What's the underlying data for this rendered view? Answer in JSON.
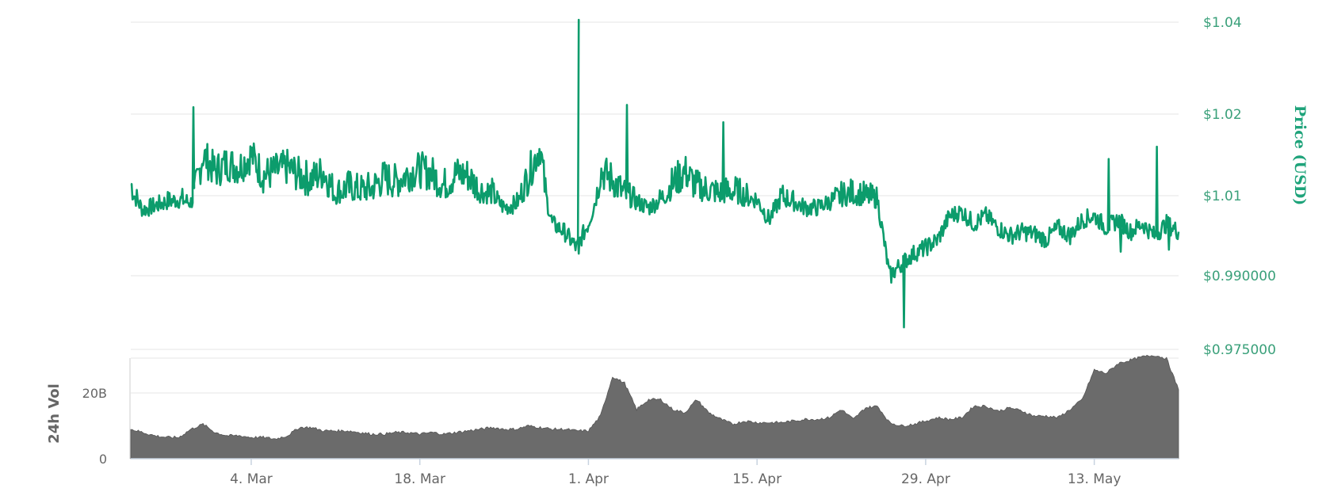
{
  "chart_data": [
    {
      "type": "line",
      "panel": "price",
      "ylabel": "Price (USD)",
      "ylim": [
        0.975,
        1.04
      ],
      "y_ticks": [
        {
          "value": 1.04,
          "label": "$1.04"
        },
        {
          "value": 1.02,
          "label": "$1.02"
        },
        {
          "value": 1.01,
          "label": "$1.01"
        },
        {
          "value": 0.99,
          "label": "$0.990000"
        },
        {
          "value": 0.975,
          "label": "$0.975000"
        }
      ],
      "x_ticks": [
        {
          "x": "2019-03-04",
          "label": "4. Mar"
        },
        {
          "x": "2019-03-18",
          "label": "18. Mar"
        },
        {
          "x": "2019-04-01",
          "label": "1. Apr"
        },
        {
          "x": "2019-04-15",
          "label": "15. Apr"
        },
        {
          "x": "2019-04-29",
          "label": "29. Apr"
        },
        {
          "x": "2019-05-13",
          "label": "13. May"
        }
      ],
      "xlim": [
        "2019-02-22",
        "2019-05-20"
      ],
      "color": "#0c9c6c",
      "series": [
        {
          "x": [
            "2019-02-22",
            "2019-02-23",
            "2019-02-24",
            "2019-02-25",
            "2019-02-26",
            "2019-02-27",
            "2019-02-28",
            "2019-03-01",
            "2019-03-02",
            "2019-03-03",
            "2019-03-04",
            "2019-03-05",
            "2019-03-06",
            "2019-03-07",
            "2019-03-08",
            "2019-03-09",
            "2019-03-10",
            "2019-03-11",
            "2019-03-12",
            "2019-03-13",
            "2019-03-14",
            "2019-03-15",
            "2019-03-16",
            "2019-03-17",
            "2019-03-18",
            "2019-03-19",
            "2019-03-20",
            "2019-03-21",
            "2019-03-22",
            "2019-03-23",
            "2019-03-24",
            "2019-03-25",
            "2019-03-26",
            "2019-03-27",
            "2019-03-28",
            "2019-03-29",
            "2019-03-30",
            "2019-03-31",
            "2019-04-01",
            "2019-04-02",
            "2019-04-03",
            "2019-04-04",
            "2019-04-05",
            "2019-04-06",
            "2019-04-07",
            "2019-04-08",
            "2019-04-09",
            "2019-04-10",
            "2019-04-11",
            "2019-04-12",
            "2019-04-13",
            "2019-04-14",
            "2019-04-15",
            "2019-04-16",
            "2019-04-17",
            "2019-04-18",
            "2019-04-19",
            "2019-04-20",
            "2019-04-21",
            "2019-04-22",
            "2019-04-23",
            "2019-04-24",
            "2019-04-25",
            "2019-04-26",
            "2019-04-27",
            "2019-04-28",
            "2019-04-29",
            "2019-04-30",
            "2019-05-01",
            "2019-05-02",
            "2019-05-03",
            "2019-05-04",
            "2019-05-05",
            "2019-05-06",
            "2019-05-07",
            "2019-05-08",
            "2019-05-09",
            "2019-05-10",
            "2019-05-11",
            "2019-05-12",
            "2019-05-13",
            "2019-05-14",
            "2019-05-15",
            "2019-05-16",
            "2019-05-17",
            "2019-05-18",
            "2019-05-19",
            "2019-05-20"
          ],
          "values": [
            1.0115,
            1.0065,
            1.0075,
            1.0085,
            1.009,
            1.0083,
            1.015,
            1.013,
            1.014,
            1.0135,
            1.015,
            1.0125,
            1.013,
            1.0135,
            1.0125,
            1.012,
            1.013,
            1.01,
            1.011,
            1.0105,
            1.0108,
            1.0122,
            1.0117,
            1.0127,
            1.0132,
            1.0127,
            1.0112,
            1.0127,
            1.0125,
            1.0105,
            1.01,
            1.007,
            1.008,
            1.0125,
            1.016,
            1.003,
            1.001,
            0.997,
            1.003,
            1.013,
            1.012,
            1.01,
            1.0085,
            1.007,
            1.009,
            1.0115,
            1.013,
            1.011,
            1.0105,
            1.01,
            1.0105,
            1.0095,
            1.009,
            1.004,
            1.0095,
            1.0085,
            1.007,
            1.007,
            1.0085,
            1.0095,
            1.01,
            1.0095,
            1.009,
            0.99,
            0.993,
            0.9955,
            0.997,
            0.999,
            1.005,
            1.006,
            1.003,
            1.005,
            1.002,
            1.0,
            1.001,
            1.0005,
            0.999,
            1.002,
            1.0,
            1.004,
            1.005,
            1.002,
            1.004,
            1.001,
            1.003,
            1.0,
            1.003,
            1.001
          ]
        }
      ],
      "spikes": [
        {
          "x": "2019-02-27",
          "value": 1.0215
        },
        {
          "x": "2019-03-31",
          "value": 1.0405
        },
        {
          "x": "2019-04-04",
          "value": 1.022
        },
        {
          "x": "2019-04-12",
          "value": 1.019
        },
        {
          "x": "2019-05-14",
          "value": 1.0145
        },
        {
          "x": "2019-05-18",
          "value": 1.016
        }
      ],
      "dips": [
        {
          "x": "2019-03-31",
          "value": 0.9955
        },
        {
          "x": "2019-04-27",
          "value": 0.9795
        },
        {
          "x": "2019-05-15",
          "value": 0.996
        },
        {
          "x": "2019-05-19",
          "value": 0.9965
        }
      ]
    },
    {
      "type": "area",
      "panel": "volume",
      "ylabel": "24h Vol",
      "ylim": [
        0,
        30
      ],
      "y_unit": "B",
      "y_ticks": [
        {
          "value": 0,
          "label": "0"
        },
        {
          "value": 20,
          "label": "20B"
        }
      ],
      "color": "#6b6b6b",
      "series": [
        {
          "x": [
            "2019-02-22",
            "2019-02-23",
            "2019-02-24",
            "2019-02-25",
            "2019-02-26",
            "2019-02-27",
            "2019-02-28",
            "2019-03-01",
            "2019-03-02",
            "2019-03-03",
            "2019-03-04",
            "2019-03-05",
            "2019-03-06",
            "2019-03-07",
            "2019-03-08",
            "2019-03-09",
            "2019-03-10",
            "2019-03-11",
            "2019-03-12",
            "2019-03-13",
            "2019-03-14",
            "2019-03-15",
            "2019-03-16",
            "2019-03-17",
            "2019-03-18",
            "2019-03-19",
            "2019-03-20",
            "2019-03-21",
            "2019-03-22",
            "2019-03-23",
            "2019-03-24",
            "2019-03-25",
            "2019-03-26",
            "2019-03-27",
            "2019-03-28",
            "2019-03-29",
            "2019-03-30",
            "2019-03-31",
            "2019-04-01",
            "2019-04-02",
            "2019-04-03",
            "2019-04-04",
            "2019-04-05",
            "2019-04-06",
            "2019-04-07",
            "2019-04-08",
            "2019-04-09",
            "2019-04-10",
            "2019-04-11",
            "2019-04-12",
            "2019-04-13",
            "2019-04-14",
            "2019-04-15",
            "2019-04-16",
            "2019-04-17",
            "2019-04-18",
            "2019-04-19",
            "2019-04-20",
            "2019-04-21",
            "2019-04-22",
            "2019-04-23",
            "2019-04-24",
            "2019-04-25",
            "2019-04-26",
            "2019-04-27",
            "2019-04-28",
            "2019-04-29",
            "2019-04-30",
            "2019-05-01",
            "2019-05-02",
            "2019-05-03",
            "2019-05-04",
            "2019-05-05",
            "2019-05-06",
            "2019-05-07",
            "2019-05-08",
            "2019-05-09",
            "2019-05-10",
            "2019-05-11",
            "2019-05-12",
            "2019-05-13",
            "2019-05-14",
            "2019-05-15",
            "2019-05-16",
            "2019-05-17",
            "2019-05-18",
            "2019-05-19",
            "2019-05-20"
          ],
          "values": [
            9.0,
            8.0,
            7.0,
            6.5,
            6.5,
            9.0,
            10.5,
            8.0,
            7.0,
            7.0,
            6.5,
            6.5,
            6.0,
            7.0,
            9.5,
            9.5,
            8.5,
            8.5,
            8.5,
            8.0,
            7.5,
            7.5,
            8.0,
            8.0,
            7.5,
            8.0,
            7.5,
            8.0,
            8.5,
            9.0,
            9.5,
            9.0,
            9.0,
            10.0,
            9.5,
            9.0,
            9.0,
            8.5,
            8.5,
            13.0,
            25.0,
            23.0,
            15.0,
            18.0,
            18.0,
            15.0,
            14.0,
            18.0,
            14.0,
            12.0,
            10.5,
            11.5,
            11.0,
            11.0,
            11.0,
            11.5,
            12.0,
            12.0,
            12.5,
            15.0,
            12.0,
            15.5,
            16.0,
            11.0,
            10.0,
            10.5,
            11.5,
            12.5,
            12.0,
            12.5,
            16.0,
            16.0,
            14.5,
            15.5,
            14.5,
            13.0,
            13.0,
            12.5,
            15.0,
            18.0,
            27.0,
            26.0,
            29.0,
            30.0,
            31.0,
            31.5,
            30.5,
            21.0
          ]
        }
      ]
    }
  ]
}
